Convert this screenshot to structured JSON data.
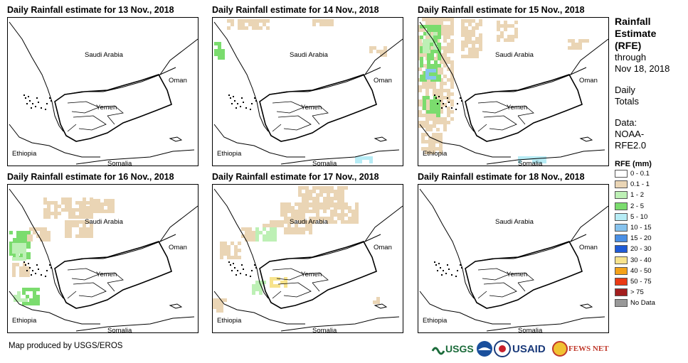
{
  "panels": [
    {
      "title": "Daily Rainfall estimate for 13 Nov., 2018",
      "rain": "none"
    },
    {
      "title": "Daily Rainfall estimate for 14 Nov., 2018",
      "rain": "light"
    },
    {
      "title": "Daily Rainfall estimate for 15 Nov., 2018",
      "rain": "heavy"
    },
    {
      "title": "Daily Rainfall estimate for 16 Nov., 2018",
      "rain": "medium"
    },
    {
      "title": "Daily Rainfall estimate for 17 Nov., 2018",
      "rain": "band"
    },
    {
      "title": "Daily Rainfall estimate for 18 Nov., 2018",
      "rain": "none"
    }
  ],
  "map_labels": {
    "saudi": "Saudi Arabia",
    "oman": "Oman",
    "yemen": "Yemen",
    "ethiopia": "Ethiopia",
    "somalia": "Somalia"
  },
  "sidebar": {
    "title_line1": "Rainfall",
    "title_line2": "Estimate",
    "title_line3": "(RFE)",
    "through": "through",
    "date": "Nov 18, 2018",
    "daily": "Daily",
    "totals": "Totals",
    "data": "Data:",
    "source1": "NOAA-",
    "source2": "RFE2.0"
  },
  "legend": {
    "title": "RFE (mm)",
    "items": [
      {
        "label": "0 - 0.1",
        "color": "#ffffff"
      },
      {
        "label": "0.1 - 1",
        "color": "#ead5b5"
      },
      {
        "label": "1 - 2",
        "color": "#bdf0b5"
      },
      {
        "label": "2 - 5",
        "color": "#7bdc6e"
      },
      {
        "label": "5 - 10",
        "color": "#b7ecf5"
      },
      {
        "label": "10 - 15",
        "color": "#87c3ee"
      },
      {
        "label": "15 - 20",
        "color": "#4a8fe4"
      },
      {
        "label": "20 - 30",
        "color": "#1f5bd6"
      },
      {
        "label": "30 - 40",
        "color": "#f7e38c"
      },
      {
        "label": "40 - 50",
        "color": "#f4a21a"
      },
      {
        "label": "50 - 75",
        "color": "#ea3a14"
      },
      {
        "label": "> 75",
        "color": "#a31e1e"
      },
      {
        "label": "No Data",
        "color": "#999999"
      }
    ]
  },
  "credit": "Map produced by USGS/EROS",
  "logos": {
    "usgs": "USGS",
    "usaid": "USAID",
    "fews": "FEWS NET"
  }
}
